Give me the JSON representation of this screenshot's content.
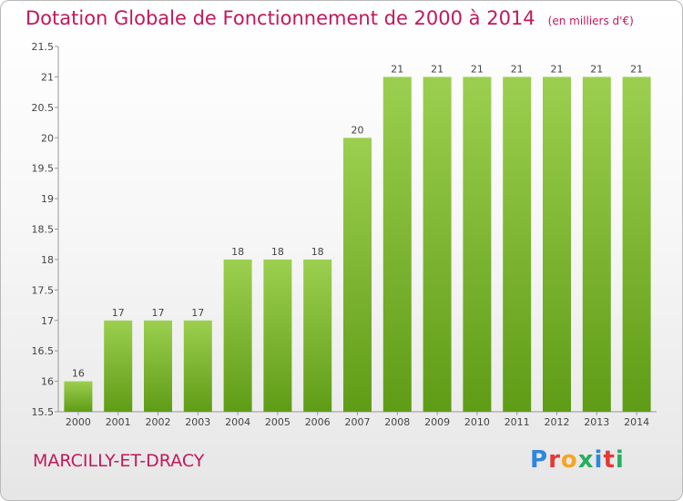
{
  "header": {
    "title": "Dotation Globale de Fonctionnement de 2000 à 2014",
    "unit": "(en milliers d'€)"
  },
  "footer": {
    "commune": "MARCILLY-ET-DRACY",
    "logo_text": "Proxiti",
    "logo_colors": [
      "#2e86de",
      "#e53935",
      "#f5a623",
      "#27ae60",
      "#2e86de",
      "#e53935",
      "#27ae60"
    ]
  },
  "chart_data": {
    "type": "bar",
    "categories": [
      "2000",
      "2001",
      "2002",
      "2003",
      "2004",
      "2005",
      "2006",
      "2007",
      "2008",
      "2009",
      "2010",
      "2011",
      "2012",
      "2013",
      "2014"
    ],
    "values": [
      16,
      17,
      17,
      17,
      18,
      18,
      18,
      20,
      21,
      21,
      21,
      21,
      21,
      21,
      21
    ],
    "data_labels": [
      "16",
      "17",
      "17",
      "17",
      "18",
      "18",
      "18",
      "20",
      "21",
      "21",
      "21",
      "21",
      "21",
      "21",
      "21"
    ],
    "ylim": [
      15.5,
      21.5
    ],
    "yticks": [
      15.5,
      16,
      16.5,
      17,
      17.5,
      18,
      18.5,
      19,
      19.5,
      20,
      20.5,
      21,
      21.5
    ],
    "ytick_labels": [
      "15.5",
      "16",
      "16.5",
      "17",
      "17.5",
      "18",
      "18.5",
      "19",
      "19.5",
      "20",
      "20.5",
      "21",
      "21.5"
    ],
    "bar_color_top": "#9ccf4f",
    "bar_color_bottom": "#5f9c16",
    "grid": false
  }
}
